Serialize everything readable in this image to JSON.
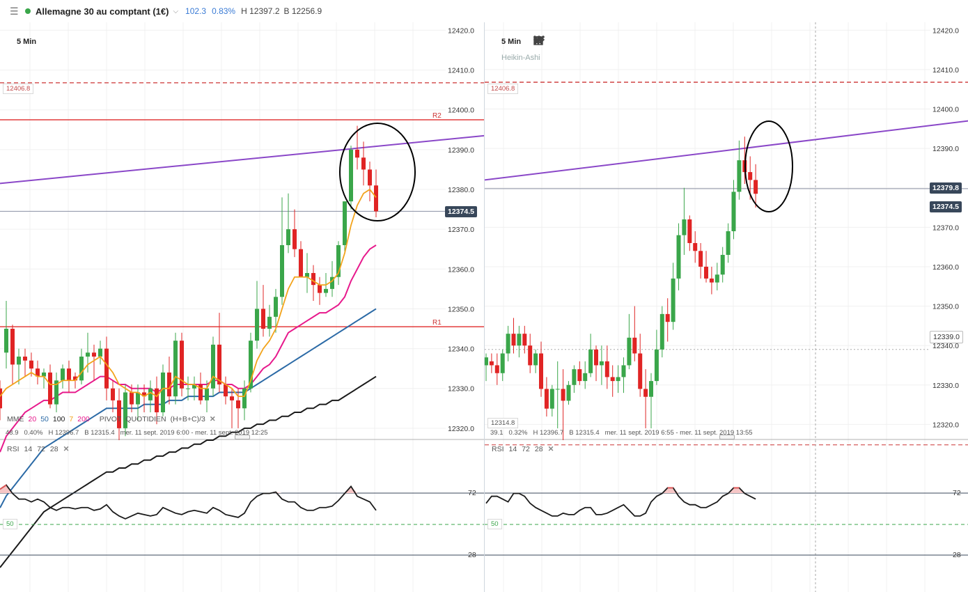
{
  "header": {
    "instrument": "Allemagne 30 au comptant (1€)",
    "change": "102.3",
    "change_pct": "0.83%",
    "high": "H 12397.2",
    "low": "B 12256.9"
  },
  "colors": {
    "up": "#3aa64a",
    "down": "#e02424",
    "ema20": "#e7198c",
    "ema50": "#2b6aa6",
    "ema100": "#1a1a1a",
    "ema7": "#f2a31b",
    "pivot": "#e23b3b",
    "trend": "#8a47c8",
    "circle": "#000000",
    "rsi": "#1a1a1a",
    "rsi_over": "#e05a5a"
  },
  "left": {
    "timeframe": "5 Min",
    "level_box": "12406.8",
    "current_price": "12374.5",
    "r2": "R2",
    "r1": "R1",
    "indicators": [
      "MME",
      "20",
      "50",
      "100",
      "7",
      "200",
      "PIVOT",
      "QUOTIDIEN",
      "(H+B+C)/3"
    ],
    "info": [
      "48.9",
      "0.40%",
      "H 12396.7",
      "B 12315.4",
      "mer. 11 sept. 2019 6:00 - mer. 11 sept. 2019 12:25"
    ],
    "rsi_label": [
      "RSI",
      "14",
      "72",
      "28"
    ],
    "rsi_axis": [
      "72",
      "28"
    ],
    "rsi_mid": "50",
    "y_axis": [
      "12420.0",
      "12410.0",
      "12400.0",
      "12390.0",
      "12380.0",
      "12370.0",
      "12360.0",
      "12350.0",
      "12340.0",
      "12330.0",
      "12320.0"
    ]
  },
  "right": {
    "timeframe": "5 Min",
    "chart_type": "Heikin-Ashi",
    "level_box": "12406.8",
    "low_box": "12314.8",
    "crosshair_price": "12379.8",
    "current_price": "12374.5",
    "crosshair_price2": "12339.0",
    "info": [
      "39.1",
      "0.32%",
      "H 12396.7",
      "B 12315.4",
      "mer. 11 sept. 2019 6:55 - mer. 11 sept. 2019 13:55"
    ],
    "rsi_label": [
      "RSI",
      "14",
      "72",
      "28"
    ],
    "rsi_axis": [
      "72",
      "28"
    ],
    "rsi_mid": "50",
    "y_axis": [
      "12420.0",
      "12410.0",
      "12400.0",
      "12390.0",
      "12380.0",
      "12370.0",
      "12360.0",
      "12350.0",
      "12340.0",
      "12330.0",
      "12320.0"
    ],
    "toolbar_icons": [
      "calendar-icon",
      "bar-chart-icon",
      "pencil-icon",
      "eye-icon",
      "more-icon",
      "zoom-out-icon",
      "zoom-in-icon",
      "play-end-icon"
    ]
  },
  "chart_data": [
    {
      "type": "candlestick",
      "title": "Allemagne 30 au comptant (1€) 5 Min",
      "ylim": [
        12317,
        12422
      ],
      "pivots": {
        "R2": 12397.5,
        "R1": 12345.5
      },
      "level": 12406.8,
      "current": 12374.5,
      "ohlc": [
        [
          12330,
          12332,
          12322,
          12325
        ],
        [
          12339,
          12352,
          12335,
          12345
        ],
        [
          12345,
          12346,
          12331,
          12336
        ],
        [
          12336,
          12340,
          12331,
          12338
        ],
        [
          12338,
          12340,
          12333,
          12337
        ],
        [
          12337,
          12339,
          12333,
          12335
        ],
        [
          12335,
          12337,
          12331,
          12333
        ],
        [
          12333,
          12335,
          12330,
          12334
        ],
        [
          12334,
          12336,
          12325,
          12326
        ],
        [
          12326,
          12334,
          12324,
          12332
        ],
        [
          12332,
          12336,
          12330,
          12335
        ],
        [
          12335,
          12337,
          12329,
          12332
        ],
        [
          12333,
          12334,
          12330,
          12332
        ],
        [
          12332,
          12340,
          12331,
          12338
        ],
        [
          12338,
          12344,
          12334,
          12339
        ],
        [
          12339,
          12341,
          12332,
          12338
        ],
        [
          12338,
          12342,
          12336,
          12340
        ],
        [
          12340,
          12343,
          12327,
          12330
        ],
        [
          12330,
          12332,
          12324,
          12327
        ],
        [
          12327,
          12330,
          12317,
          12320
        ],
        [
          12320,
          12331,
          12318,
          12329
        ],
        [
          12329,
          12331,
          12324,
          12326
        ],
        [
          12326,
          12331,
          12322,
          12329
        ],
        [
          12329,
          12331,
          12324,
          12328
        ],
        [
          12327,
          12332,
          12324,
          12330
        ],
        [
          12330,
          12333,
          12321,
          12324
        ],
        [
          12324,
          12336,
          12323,
          12334
        ],
        [
          12334,
          12338,
          12326,
          12328
        ],
        [
          12328,
          12344,
          12326,
          12342
        ],
        [
          12342,
          12344,
          12328,
          12330
        ],
        [
          12330,
          12333,
          12327,
          12330
        ],
        [
          12330,
          12333,
          12327,
          12331
        ],
        [
          12331,
          12334,
          12326,
          12327
        ],
        [
          12327,
          12332,
          12324,
          12330
        ],
        [
          12330,
          12343,
          12328,
          12341
        ],
        [
          12341,
          12349,
          12329,
          12331
        ],
        [
          12331,
          12333,
          12326,
          12328
        ],
        [
          12328,
          12330,
          12320,
          12327
        ],
        [
          12327,
          12330,
          12320,
          12325
        ],
        [
          12325,
          12332,
          12322,
          12330
        ],
        [
          12330,
          12344,
          12329,
          12342
        ],
        [
          12342,
          12357,
          12340,
          12350
        ],
        [
          12350,
          12356,
          12343,
          12345
        ],
        [
          12345,
          12351,
          12343,
          12348
        ],
        [
          12348,
          12355,
          12344,
          12353
        ],
        [
          12353,
          12378,
          12351,
          12366
        ],
        [
          12366,
          12379,
          12364,
          12370
        ],
        [
          12370,
          12375,
          12363,
          12365
        ],
        [
          12365,
          12367,
          12358,
          12358
        ],
        [
          12358,
          12364,
          12354,
          12359
        ],
        [
          12359,
          12361,
          12352,
          12356
        ],
        [
          12356,
          12358,
          12351,
          12354
        ],
        [
          12354,
          12359,
          12353,
          12355
        ],
        [
          12355,
          12362,
          12353,
          12358
        ],
        [
          12358,
          12367,
          12356,
          12366
        ],
        [
          12366,
          12377,
          12364,
          12377
        ],
        [
          12377,
          12391,
          12375,
          12390
        ],
        [
          12390,
          12396,
          12385,
          12388
        ],
        [
          12388,
          12392,
          12381,
          12385
        ],
        [
          12385,
          12387,
          12377,
          12381
        ],
        [
          12381,
          12385,
          12373,
          12374.5
        ]
      ],
      "ema7": [
        12328,
        12330,
        12331,
        12332,
        12333,
        12334,
        12333,
        12333,
        12331,
        12331,
        12332,
        12332,
        12332,
        12334,
        12336,
        12337,
        12338,
        12336,
        12334,
        12331,
        12330,
        12329,
        12329,
        12328,
        12329,
        12328,
        12330,
        12330,
        12333,
        12332,
        12331,
        12331,
        12330,
        12330,
        12333,
        12332,
        12331,
        12330,
        12328,
        12328,
        12332,
        12337,
        12340,
        12342,
        12345,
        12350,
        12355,
        12358,
        12358,
        12358,
        12357,
        12356,
        12356,
        12357,
        12359,
        12364,
        12371,
        12376,
        12379,
        12380,
        12378
      ],
      "ema20": [
        12314,
        12318,
        12320,
        12322,
        12324,
        12325,
        12326,
        12327,
        12327,
        12328,
        12329,
        12329,
        12329,
        12330,
        12331,
        12332,
        12333,
        12333,
        12332,
        12331,
        12331,
        12330,
        12330,
        12330,
        12330,
        12329,
        12330,
        12330,
        12331,
        12331,
        12331,
        12331,
        12331,
        12331,
        12332,
        12332,
        12331,
        12331,
        12330,
        12330,
        12331,
        12333,
        12335,
        12336,
        12338,
        12341,
        12344,
        12345,
        12346,
        12347,
        12348,
        12349,
        12349,
        12350,
        12351,
        12353,
        12357,
        12360,
        12363,
        12365,
        12366
      ],
      "ema50": [
        12300,
        12303,
        12305,
        12307,
        12309,
        12311,
        12313,
        12315,
        12316,
        12317,
        12318,
        12319,
        12320,
        12321,
        12322,
        12323,
        12324,
        12325,
        12325,
        12325,
        12325,
        12325,
        12325,
        12326,
        12326,
        12326,
        12326,
        12327,
        12327,
        12327,
        12328,
        12328,
        12328,
        12328,
        12328,
        12329,
        12329,
        12329,
        12329,
        12329,
        12330,
        12331,
        12332,
        12333,
        12334,
        12335,
        12336,
        12337,
        12338,
        12339,
        12340,
        12341,
        12342,
        12343,
        12344,
        12345,
        12346,
        12347,
        12348,
        12349,
        12350
      ],
      "ema100": [
        12285,
        12287,
        12289,
        12291,
        12293,
        12295,
        12297,
        12299,
        12300,
        12301,
        12302,
        12303,
        12304,
        12305,
        12306,
        12307,
        12308,
        12309,
        12309,
        12310,
        12310,
        12311,
        12311,
        12312,
        12312,
        12313,
        12313,
        12314,
        12314,
        12315,
        12315,
        12316,
        12316,
        12317,
        12317,
        12318,
        12318,
        12319,
        12319,
        12320,
        12320,
        12321,
        12321,
        12322,
        12322,
        12323,
        12323,
        12324,
        12324,
        12325,
        12325,
        12326,
        12326,
        12327,
        12327,
        12328,
        12329,
        12330,
        12331,
        12332,
        12333
      ],
      "trendline": [
        [
          0,
          12381.5
        ],
        [
          695,
          12393.5
        ]
      ],
      "rsi": [
        75,
        78,
        72,
        68,
        68,
        66,
        68,
        66,
        62,
        60,
        62,
        62,
        61,
        62,
        62,
        60,
        61,
        64,
        59,
        56,
        54,
        56,
        58,
        57,
        56,
        57,
        62,
        60,
        58,
        57,
        59,
        60,
        59,
        58,
        62,
        60,
        57,
        56,
        55,
        58,
        66,
        70,
        72,
        72,
        73,
        68,
        66,
        66,
        62,
        60,
        60,
        62,
        62,
        63,
        67,
        72,
        77,
        70,
        68,
        66,
        60
      ]
    },
    {
      "type": "candlestick",
      "title": "Allemagne 30 au comptant (1€) 5 Min Heikin-Ashi",
      "ylim": [
        12316,
        12422
      ],
      "level": 12406.8,
      "low_level": 12314.8,
      "crosshair": 12379.8,
      "current": 12374.5,
      "crosshair2": 12339.0,
      "ohlc": [
        [
          12335,
          12338,
          12331,
          12337
        ],
        [
          12336,
          12338,
          12333,
          12335
        ],
        [
          12335,
          12338,
          12330,
          12333
        ],
        [
          12333,
          12339,
          12331,
          12338
        ],
        [
          12338,
          12345,
          12336,
          12343
        ],
        [
          12343,
          12347,
          12338,
          12340
        ],
        [
          12340,
          12345,
          12337,
          12343
        ],
        [
          12343,
          12345,
          12338,
          12340
        ],
        [
          12340,
          12343,
          12333,
          12335
        ],
        [
          12335,
          12339,
          12333,
          12338
        ],
        [
          12338,
          12341,
          12327,
          12329
        ],
        [
          12329,
          12332,
          12322,
          12324
        ],
        [
          12324,
          12330,
          12322,
          12329
        ],
        [
          12329,
          12336,
          12319,
          12329
        ],
        [
          12329,
          12334,
          12316,
          12326
        ],
        [
          12326,
          12331,
          12325,
          12330
        ],
        [
          12330,
          12335,
          12328,
          12334
        ],
        [
          12334,
          12336,
          12330,
          12331
        ],
        [
          12331,
          12336,
          12329,
          12333
        ],
        [
          12333,
          12343,
          12332,
          12339
        ],
        [
          12339,
          12340,
          12331,
          12335
        ],
        [
          12335,
          12340,
          12330,
          12336
        ],
        [
          12336,
          12340,
          12329,
          12332
        ],
        [
          12332,
          12335,
          12327,
          12331
        ],
        [
          12331,
          12335,
          12328,
          12332
        ],
        [
          12332,
          12337,
          12328,
          12335
        ],
        [
          12335,
          12348,
          12334,
          12342
        ],
        [
          12342,
          12350,
          12336,
          12338
        ],
        [
          12338,
          12343,
          12327,
          12329
        ],
        [
          12329,
          12334,
          12319,
          12327
        ],
        [
          12327,
          12333,
          12319,
          12331
        ],
        [
          12331,
          12344,
          12330,
          12339
        ],
        [
          12339,
          12350,
          12337,
          12348
        ],
        [
          12348,
          12352,
          12341,
          12346
        ],
        [
          12346,
          12361,
          12344,
          12357
        ],
        [
          12357,
          12371,
          12354,
          12368
        ],
        [
          12368,
          12380,
          12363,
          12372
        ],
        [
          12372,
          12373,
          12364,
          12366
        ],
        [
          12366,
          12369,
          12361,
          12364
        ],
        [
          12364,
          12366,
          12357,
          12360
        ],
        [
          12360,
          12364,
          12356,
          12357
        ],
        [
          12357,
          12360,
          12353,
          12356
        ],
        [
          12356,
          12361,
          12354,
          12358
        ],
        [
          12358,
          12365,
          12356,
          12363
        ],
        [
          12363,
          12371,
          12361,
          12369
        ],
        [
          12369,
          12382,
          12367,
          12379
        ],
        [
          12379,
          12392,
          12377,
          12387
        ],
        [
          12387,
          12393,
          12381,
          12384
        ],
        [
          12384,
          12388,
          12377,
          12382
        ],
        [
          12382,
          12386,
          12375,
          12378.5
        ]
      ],
      "rsi": [
        65,
        70,
        70,
        68,
        66,
        72,
        72,
        70,
        65,
        62,
        60,
        58,
        56,
        56,
        58,
        57,
        57,
        60,
        62,
        62,
        57,
        57,
        58,
        60,
        62,
        64,
        60,
        56,
        56,
        58,
        66,
        70,
        72,
        76,
        76,
        70,
        66,
        64,
        64,
        62,
        62,
        64,
        66,
        70,
        72,
        76,
        76,
        72,
        70,
        68
      ]
    }
  ]
}
